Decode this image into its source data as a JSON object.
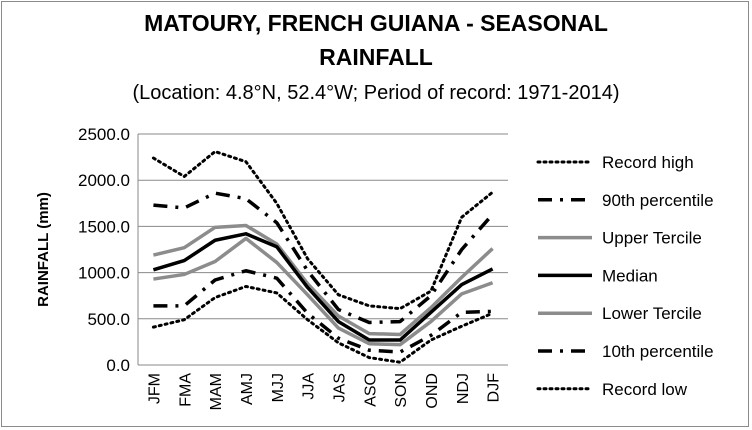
{
  "chart_data": {
    "type": "line",
    "title_line1": "MATOURY, FRENCH GUIANA - SEASONAL",
    "title_line2": "RAINFALL",
    "subtitle": "(Location: 4.8°N, 52.4°W; Period of record: 1971-2014)",
    "xlabel": "",
    "ylabel": "RAINFALL (mm)",
    "ylim": [
      0,
      2500
    ],
    "yticks": [
      "2500.0",
      "2000.0",
      "1500.0",
      "1000.0",
      "500.0",
      "0.0"
    ],
    "ytick_values": [
      2500,
      2000,
      1500,
      1000,
      500,
      0
    ],
    "grid": true,
    "legend_position": "right",
    "categories": [
      "JFM",
      "FMA",
      "MAM",
      "AMJ",
      "MJJ",
      "JJA",
      "JAS",
      "ASO",
      "SON",
      "OND",
      "NDJ",
      "DJF"
    ],
    "series": [
      {
        "name": "Record high",
        "style": "dotted",
        "color": "#000000",
        "values": [
          2240,
          2040,
          2310,
          2200,
          1750,
          1150,
          760,
          640,
          610,
          800,
          1600,
          1870
        ]
      },
      {
        "name": "90th percentile",
        "style": "dashdot",
        "color": "#000000",
        "values": [
          1730,
          1700,
          1860,
          1800,
          1540,
          1020,
          600,
          460,
          470,
          750,
          1250,
          1630
        ]
      },
      {
        "name": "Upper Tercile",
        "style": "solid-gray",
        "color": "#8c8c8c",
        "values": [
          1190,
          1270,
          1490,
          1510,
          1310,
          880,
          530,
          340,
          330,
          620,
          950,
          1260
        ]
      },
      {
        "name": "Median",
        "style": "solid",
        "color": "#000000",
        "values": [
          1030,
          1130,
          1350,
          1420,
          1280,
          840,
          470,
          270,
          270,
          570,
          870,
          1040
        ]
      },
      {
        "name": "Lower Tercile",
        "style": "solid-gray",
        "color": "#8c8c8c",
        "values": [
          930,
          980,
          1120,
          1370,
          1110,
          760,
          400,
          230,
          220,
          470,
          770,
          890
        ]
      },
      {
        "name": "10th percentile",
        "style": "dashdot",
        "color": "#000000",
        "values": [
          640,
          640,
          920,
          1020,
          940,
          560,
          290,
          160,
          140,
          320,
          570,
          580
        ]
      },
      {
        "name": "Record low",
        "style": "dotted",
        "color": "#000000",
        "values": [
          410,
          490,
          730,
          850,
          780,
          490,
          240,
          80,
          30,
          270,
          420,
          560
        ]
      }
    ]
  }
}
